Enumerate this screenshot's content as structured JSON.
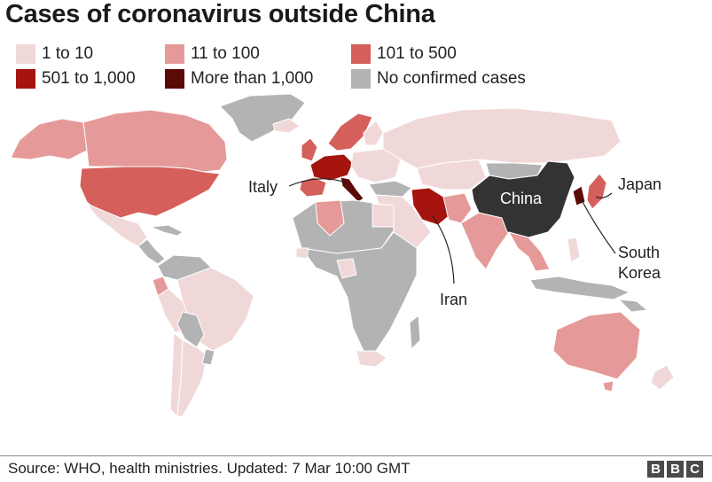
{
  "title": "Cases of coronavirus outside China",
  "legend": {
    "items": [
      {
        "label": "1 to 10",
        "color": "#f1d8d8"
      },
      {
        "label": "11 to 100",
        "color": "#e59a99"
      },
      {
        "label": "101 to 500",
        "color": "#d45f5b"
      },
      {
        "label": "501 to 1,000",
        "color": "#a5140e"
      },
      {
        "label": "More than 1,000",
        "color": "#5a0a07"
      },
      {
        "label": "No confirmed cases",
        "color": "#b3b3b3"
      }
    ]
  },
  "map": {
    "labels": {
      "china": "China",
      "italy": "Italy",
      "japan": "Japan",
      "south_korea_line1": "South",
      "south_korea_line2": "Korea",
      "iran": "Iran"
    },
    "colors": {
      "china": "#333333",
      "border": "#ffffff"
    }
  },
  "footer": {
    "source": "Source: WHO, health ministries. Updated: 7 Mar 10:00 GMT",
    "logo_letters": [
      "B",
      "B",
      "C"
    ]
  }
}
